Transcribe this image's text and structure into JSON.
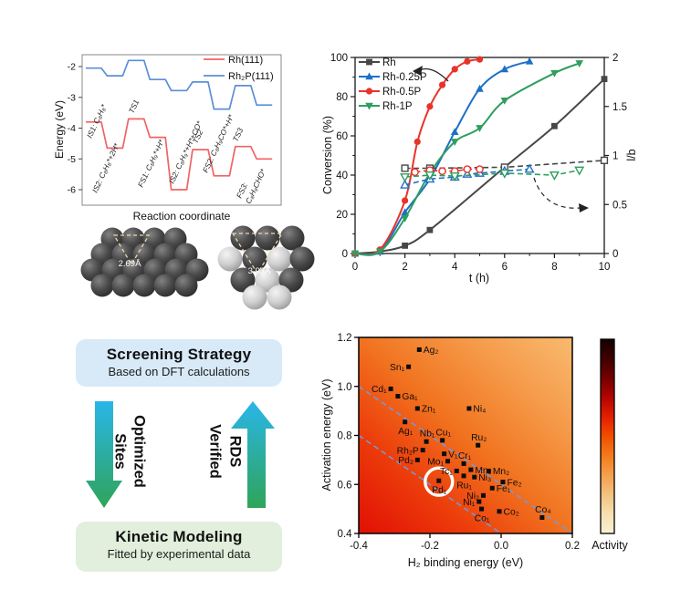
{
  "figure": {
    "background": "#ffffff"
  },
  "chart_data": [
    {
      "type": "line",
      "id": "energy-diagram",
      "xlabel": "Reaction coordinate",
      "ylabel": "Energy (eV)",
      "ylim": [
        -6.5,
        -1.6
      ],
      "yticks": [
        -2,
        -3,
        -4,
        -5,
        -6
      ],
      "grid": false,
      "legend_position": "top-right",
      "series": [
        {
          "name": "Rh(111)",
          "color": "#f26363",
          "values": [
            -3.8,
            -4.65,
            -3.7,
            -4.3,
            -6.0,
            -4.7,
            -5.55,
            -4.6,
            -5.0
          ]
        },
        {
          "name": "Rh₂P(111)",
          "color": "#5b8fd9",
          "values": [
            -2.05,
            -2.3,
            -1.8,
            -2.42,
            -2.78,
            -2.5,
            -3.38,
            -2.62,
            -3.25
          ]
        }
      ],
      "annotations": [
        {
          "text": "IS1: C₈H₈*",
          "x": 40,
          "y": 112
        },
        {
          "text": "IS2: C₈H₈*+2H*",
          "x": 46,
          "y": 172
        },
        {
          "text": "TS1",
          "x": 86,
          "y": 85
        },
        {
          "text": "FS1: C₈H₉*+H*",
          "x": 96,
          "y": 166
        },
        {
          "text": "IS2: C₈H₉*+H*+CO*",
          "x": 130,
          "y": 162
        },
        {
          "text": "TS2",
          "x": 156,
          "y": 118
        },
        {
          "text": "FS2: C₈H₉CO*+H*",
          "x": 167,
          "y": 150
        },
        {
          "text": "TS3",
          "x": 200,
          "y": 116
        },
        {
          "text": "FS3:",
          "x": 204,
          "y": 178
        },
        {
          "text": "C₈H₉CHO*",
          "x": 214,
          "y": 184
        }
      ]
    },
    {
      "type": "line",
      "id": "conversion-plot",
      "xlabel": "t (h)",
      "ylabel_left": "Conversion (%)",
      "ylabel_right": "l/b",
      "xlim": [
        0,
        10
      ],
      "xticks": [
        0,
        2,
        4,
        6,
        8,
        10
      ],
      "ylim_left": [
        0,
        100
      ],
      "yticks_left": [
        0,
        20,
        40,
        60,
        80,
        100
      ],
      "ylim_right": [
        0,
        2
      ],
      "yticks_right": [
        [
          "0",
          0
        ],
        [
          "0.5",
          0.5
        ],
        [
          "1",
          1
        ],
        [
          "1.5",
          1.5
        ],
        [
          "2",
          2
        ]
      ],
      "legend": [
        "Rh",
        "Rh-0.25P",
        "Rh-0.5P",
        "Rh-1P"
      ],
      "conversion_series": [
        {
          "name": "Rh",
          "color": "#474747",
          "marker": "square",
          "points": [
            [
              0,
              0
            ],
            [
              1,
              1
            ],
            [
              2,
              4
            ],
            [
              3,
              12
            ],
            [
              6,
              44
            ],
            [
              8,
              65
            ],
            [
              10,
              89
            ]
          ]
        },
        {
          "name": "Rh-0.25P",
          "color": "#1f6fc9",
          "marker": "triangle-up",
          "points": [
            [
              0,
              0
            ],
            [
              1,
              1
            ],
            [
              2,
              21
            ],
            [
              3,
              38
            ],
            [
              4,
              62
            ],
            [
              5,
              84
            ],
            [
              6,
              94
            ],
            [
              7,
              98
            ]
          ]
        },
        {
          "name": "Rh-0.5P",
          "color": "#e8332a",
          "marker": "circle",
          "points": [
            [
              0,
              0
            ],
            [
              1,
              2
            ],
            [
              2,
              27
            ],
            [
              2.5,
              57
            ],
            [
              3,
              75
            ],
            [
              3.5,
              86
            ],
            [
              4,
              94
            ],
            [
              4.5,
              98
            ],
            [
              5,
              99
            ]
          ]
        },
        {
          "name": "Rh-1P",
          "color": "#2f9e5e",
          "marker": "triangle-down",
          "points": [
            [
              0,
              0
            ],
            [
              1,
              1
            ],
            [
              2,
              18
            ],
            [
              3,
              41
            ],
            [
              4,
              57
            ],
            [
              5,
              64
            ],
            [
              6,
              78
            ],
            [
              8,
              92
            ],
            [
              9,
              97
            ]
          ]
        }
      ],
      "lb_series": [
        {
          "name": "Rh",
          "color": "#474747",
          "marker": "square",
          "points": [
            [
              2,
              0.87
            ],
            [
              3,
              0.87
            ],
            [
              6,
              0.88
            ],
            [
              10,
              0.95
            ]
          ]
        },
        {
          "name": "Rh-0.25P",
          "color": "#1f6fc9",
          "marker": "triangle-up",
          "points": [
            [
              2,
              0.7
            ],
            [
              3,
              0.76
            ],
            [
              4,
              0.78
            ],
            [
              4.5,
              0.81
            ],
            [
              5,
              0.82
            ],
            [
              6,
              0.84
            ],
            [
              7,
              0.86
            ]
          ]
        },
        {
          "name": "Rh-0.5P",
          "color": "#e8332a",
          "marker": "circle",
          "points": [
            [
              2.4,
              0.83
            ],
            [
              3,
              0.85
            ],
            [
              3.5,
              0.84
            ],
            [
              4,
              0.84
            ],
            [
              4.5,
              0.86
            ],
            [
              5,
              0.86
            ]
          ]
        },
        {
          "name": "Rh-1P",
          "color": "#2f9e5e",
          "marker": "triangle-down",
          "points": [
            [
              2,
              0.78
            ],
            [
              3,
              0.8
            ],
            [
              4,
              0.79
            ],
            [
              6,
              0.82
            ],
            [
              8,
              0.8
            ],
            [
              9,
              0.85
            ]
          ]
        }
      ],
      "annotation_arrows": [
        {
          "style": "solid",
          "meaning": "conversion-left-axis"
        },
        {
          "style": "dashed",
          "meaning": "lb-right-axis"
        }
      ]
    },
    {
      "type": "scatter",
      "id": "screening-map",
      "xlabel": "H₂ binding energy (eV)",
      "ylabel": "Activation energy (eV)",
      "xlim": [
        -0.4,
        0.2
      ],
      "ylim": [
        0.4,
        1.2
      ],
      "xticks": [
        [
          "-0.4",
          -0.4
        ],
        [
          "-0.2",
          -0.2
        ],
        [
          "0.0",
          0
        ],
        [
          "0.2",
          0.2
        ]
      ],
      "yticks": [
        [
          "0.4",
          0.4
        ],
        [
          "0.6",
          0.6
        ],
        [
          "0.8",
          0.8
        ],
        [
          "1.0",
          1.0
        ],
        [
          "1.2",
          1.2
        ]
      ],
      "colorbar_label": "Activity",
      "heatmap_colors": [
        "#e10f05",
        "#ec3a0a",
        "#f1731f",
        "#f59a49",
        "#f9ba70"
      ],
      "colorbar_colors": [
        "#150000",
        "#3f0000",
        "#750000",
        "#b30500",
        "#e51e00",
        "#f04f00",
        "#f37b1c",
        "#f5a04c",
        "#f3c180",
        "#f6e0b2",
        "#faf0d2"
      ],
      "guide_line_color": "#6f9be0",
      "guide_lines": [
        [
          [
            -0.4,
            1.0
          ],
          [
            0.2,
            0.4
          ]
        ],
        [
          [
            -0.4,
            0.8
          ],
          [
            0.0,
            0.4
          ]
        ]
      ],
      "points": [
        {
          "label": "Ag₂",
          "x": -0.23,
          "y": 1.15,
          "side": "right"
        },
        {
          "label": "Sn₁",
          "x": -0.26,
          "y": 1.08,
          "side": "left"
        },
        {
          "label": "Cd₁",
          "x": -0.31,
          "y": 0.99,
          "side": "left"
        },
        {
          "label": "Ga₁",
          "x": -0.29,
          "y": 0.96,
          "side": "right"
        },
        {
          "label": "Zn₁",
          "x": -0.235,
          "y": 0.91,
          "side": "right"
        },
        {
          "label": "Ni₄",
          "x": -0.09,
          "y": 0.91,
          "side": "right"
        },
        {
          "label": "Ag₁",
          "x": -0.27,
          "y": 0.855,
          "side": "below"
        },
        {
          "label": "Nb₁",
          "x": -0.21,
          "y": 0.775,
          "side": "above"
        },
        {
          "label": "Cu₁",
          "x": -0.165,
          "y": 0.78,
          "side": "above"
        },
        {
          "label": "Ru₂",
          "x": -0.065,
          "y": 0.76,
          "side": "above"
        },
        {
          "label": "Rh₂P",
          "x": -0.22,
          "y": 0.74,
          "side": "left"
        },
        {
          "label": "V₁",
          "x": -0.16,
          "y": 0.725,
          "side": "right"
        },
        {
          "label": "Pd₂",
          "x": -0.235,
          "y": 0.7,
          "side": "left"
        },
        {
          "label": "Mo₁",
          "x": -0.15,
          "y": 0.695,
          "side": "left"
        },
        {
          "label": "Cr₁",
          "x": -0.105,
          "y": 0.685,
          "side": "above"
        },
        {
          "label": "Tc₁",
          "x": -0.125,
          "y": 0.655,
          "side": "left"
        },
        {
          "label": "Mn₁",
          "x": -0.085,
          "y": 0.66,
          "side": "right"
        },
        {
          "label": "Mn₂",
          "x": -0.035,
          "y": 0.655,
          "side": "right"
        },
        {
          "label": "Ru₁",
          "x": -0.105,
          "y": 0.635,
          "side": "below"
        },
        {
          "label": "Ni₃",
          "x": -0.075,
          "y": 0.63,
          "side": "right"
        },
        {
          "label": "Pd₁",
          "x": -0.175,
          "y": 0.615,
          "side": "below",
          "circled": true
        },
        {
          "label": "Fe₂",
          "x": 0.005,
          "y": 0.61,
          "side": "right"
        },
        {
          "label": "Fe₁",
          "x": -0.025,
          "y": 0.585,
          "side": "right"
        },
        {
          "label": "Ni₂",
          "x": -0.05,
          "y": 0.555,
          "side": "left"
        },
        {
          "label": "Ni₁",
          "x": -0.062,
          "y": 0.53,
          "side": "left"
        },
        {
          "label": "Co₁",
          "x": -0.055,
          "y": 0.5,
          "side": "below"
        },
        {
          "label": "Co₂",
          "x": -0.005,
          "y": 0.49,
          "side": "right"
        },
        {
          "label": "Co₄",
          "x": 0.115,
          "y": 0.465,
          "side": "above"
        }
      ]
    }
  ],
  "structures": {
    "left_label": "2.69Å",
    "right_label": "3.93Å",
    "dark_atom": "#3c3c3c",
    "light_atom": "#d4d4d4",
    "triangle_color": "#eed9ae"
  },
  "flowchart": {
    "top_box": {
      "title": "Screening Strategy",
      "subtitle": "Based on DFT calculations",
      "bg": "#d8e9f7"
    },
    "bottom_box": {
      "title": "Kinetic Modeling",
      "subtitle": "Fitted by experimental data",
      "bg": "#e1efdc"
    },
    "down_arrow": {
      "label": [
        "Optimized",
        "Sites"
      ]
    },
    "up_arrow": {
      "label": [
        "Verified",
        "RDS"
      ]
    },
    "arrow_gradient": {
      "top": "#29b6e9",
      "bottom": "#2fa458"
    }
  }
}
